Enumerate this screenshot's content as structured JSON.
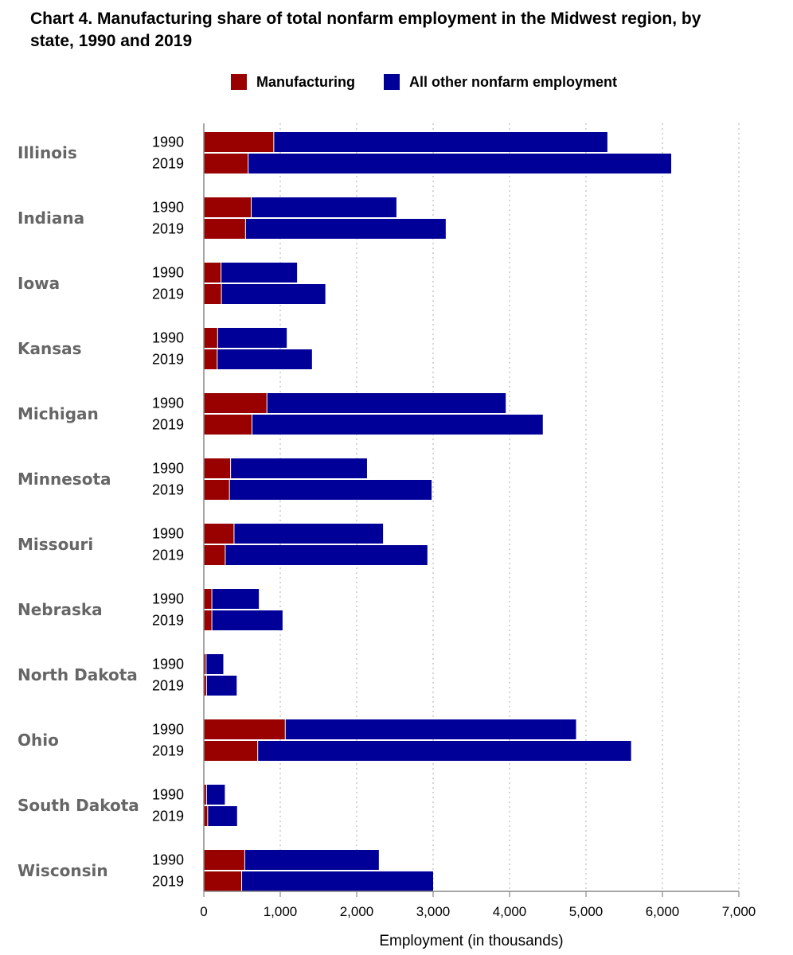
{
  "chart_data": {
    "type": "bar",
    "orientation": "horizontal",
    "stacked": true,
    "title": "Chart 4. Manufacturing share of total nonfarm employment in the Midwest region, by state, 1990 and 2019",
    "xlabel": "Employment (in thousands)",
    "ylabel": "",
    "xlim": [
      0,
      7000
    ],
    "xticks": [
      0,
      1000,
      2000,
      3000,
      4000,
      5000,
      6000,
      7000
    ],
    "xtick_labels": [
      "0",
      "1,000",
      "2,000",
      "3,000",
      "4,000",
      "5,000",
      "6,000",
      "7,000"
    ],
    "grid": "vertical-dotted",
    "legend_position": "top",
    "legend": [
      {
        "name": "Manufacturing",
        "color": "#990000"
      },
      {
        "name": "All other nonfarm employment",
        "color": "#000099"
      }
    ],
    "groups": [
      {
        "state": "Illinois",
        "bars": [
          {
            "year": "1990",
            "manufacturing": 910,
            "other": 4370
          },
          {
            "year": "2019",
            "manufacturing": 575,
            "other": 5540
          }
        ]
      },
      {
        "state": "Indiana",
        "bars": [
          {
            "year": "1990",
            "manufacturing": 615,
            "other": 1905
          },
          {
            "year": "2019",
            "manufacturing": 540,
            "other": 2625
          }
        ]
      },
      {
        "state": "Iowa",
        "bars": [
          {
            "year": "1990",
            "manufacturing": 220,
            "other": 1000
          },
          {
            "year": "2019",
            "manufacturing": 225,
            "other": 1365
          }
        ]
      },
      {
        "state": "Kansas",
        "bars": [
          {
            "year": "1990",
            "manufacturing": 175,
            "other": 910
          },
          {
            "year": "2019",
            "manufacturing": 170,
            "other": 1245
          }
        ]
      },
      {
        "state": "Michigan",
        "bars": [
          {
            "year": "1990",
            "manufacturing": 820,
            "other": 3130
          },
          {
            "year": "2019",
            "manufacturing": 625,
            "other": 3810
          }
        ]
      },
      {
        "state": "Minnesota",
        "bars": [
          {
            "year": "1990",
            "manufacturing": 345,
            "other": 1790
          },
          {
            "year": "2019",
            "manufacturing": 330,
            "other": 2650
          }
        ]
      },
      {
        "state": "Missouri",
        "bars": [
          {
            "year": "1990",
            "manufacturing": 390,
            "other": 1955
          },
          {
            "year": "2019",
            "manufacturing": 275,
            "other": 2650
          }
        ]
      },
      {
        "state": "Nebraska",
        "bars": [
          {
            "year": "1990",
            "manufacturing": 100,
            "other": 620
          },
          {
            "year": "2019",
            "manufacturing": 100,
            "other": 930
          }
        ]
      },
      {
        "state": "North Dakota",
        "bars": [
          {
            "year": "1990",
            "manufacturing": 25,
            "other": 230
          },
          {
            "year": "2019",
            "manufacturing": 30,
            "other": 400
          }
        ]
      },
      {
        "state": "Ohio",
        "bars": [
          {
            "year": "1990",
            "manufacturing": 1060,
            "other": 3810
          },
          {
            "year": "2019",
            "manufacturing": 700,
            "other": 4890
          }
        ]
      },
      {
        "state": "South Dakota",
        "bars": [
          {
            "year": "1990",
            "manufacturing": 30,
            "other": 245
          },
          {
            "year": "2019",
            "manufacturing": 45,
            "other": 390
          }
        ]
      },
      {
        "state": "Wisconsin",
        "bars": [
          {
            "year": "1990",
            "manufacturing": 530,
            "other": 1760
          },
          {
            "year": "2019",
            "manufacturing": 490,
            "other": 2510
          }
        ]
      }
    ]
  }
}
